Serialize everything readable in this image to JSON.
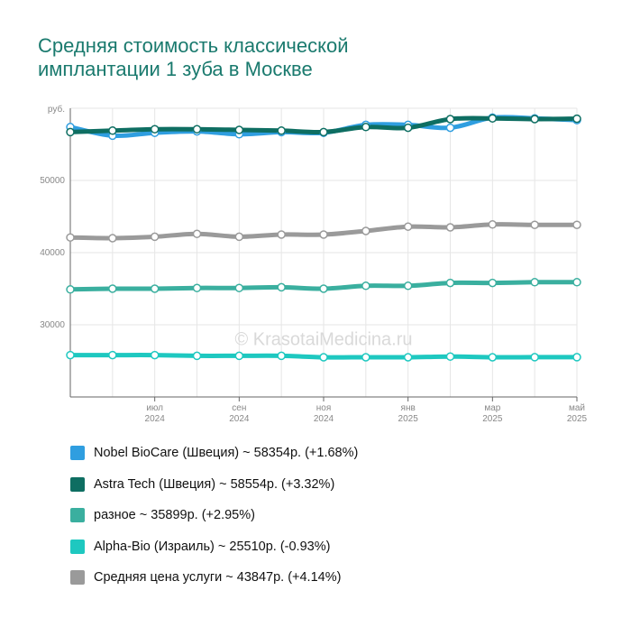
{
  "title_lines": [
    "Средняя стоимость классической",
    "имплантации 1 зуба в Москве"
  ],
  "watermark": "© KrasotaiMedicina.ru",
  "chart_data": {
    "type": "line",
    "title": "Средняя стоимость классической имплантации 1 зуба в Москве",
    "y_unit_label": "руб.",
    "ylim": [
      20000,
      60000
    ],
    "y_ticks": [
      30000,
      40000,
      50000
    ],
    "y_tick_labels": [
      "30000",
      "40000",
      "50000"
    ],
    "x": [
      "2024-05",
      "2024-06",
      "2024-07",
      "2024-08",
      "2024-09",
      "2024-10",
      "2024-11",
      "2024-12",
      "2025-01",
      "2025-02",
      "2025-03",
      "2025-04",
      "2025-05"
    ],
    "x_tick_labels": [
      {
        "month": "июл",
        "year": "2024",
        "at": "2024-07"
      },
      {
        "month": "сен",
        "year": "2024",
        "at": "2024-09"
      },
      {
        "month": "ноя",
        "year": "2024",
        "at": "2024-11"
      },
      {
        "month": "янв",
        "year": "2025",
        "at": "2025-01"
      },
      {
        "month": "мар",
        "year": "2025",
        "at": "2025-03"
      },
      {
        "month": "май",
        "year": "2025",
        "at": "2025-05"
      }
    ],
    "grid": true,
    "legend_position": "bottom",
    "series": [
      {
        "name": "Nobel BioCare (Швеция)",
        "legend": "Nobel BioCare (Швеция) ~ 58354р. (+1.68%)",
        "color": "#2f9ee0",
        "values": [
          57400,
          56200,
          56600,
          56800,
          56400,
          56700,
          56600,
          57700,
          57700,
          57300,
          58700,
          58600,
          58354
        ]
      },
      {
        "name": "Astra Tech (Швеция)",
        "legend": "Astra Tech (Швеция) ~ 58554р. (+3.32%)",
        "color": "#0e6e62",
        "values": [
          56700,
          56900,
          57100,
          57100,
          57000,
          56900,
          56700,
          57400,
          57300,
          58500,
          58600,
          58500,
          58554
        ]
      },
      {
        "name": "разное",
        "legend": "разное ~ 35899р. (+2.95%)",
        "color": "#3aaf9f",
        "values": [
          34900,
          35000,
          35000,
          35100,
          35100,
          35200,
          35000,
          35400,
          35400,
          35800,
          35800,
          35899,
          35899
        ]
      },
      {
        "name": "Alpha-Bio (Израиль)",
        "legend": "Alpha-Bio (Израиль) ~ 25510р. (-0.93%)",
        "color": "#1ec8c0",
        "values": [
          25800,
          25800,
          25800,
          25700,
          25700,
          25700,
          25500,
          25500,
          25500,
          25600,
          25500,
          25510,
          25510
        ]
      },
      {
        "name": "Средняя цена услуги",
        "legend": "Средняя цена услуги ~ 43847р. (+4.14%)",
        "color": "#9a9a9a",
        "values": [
          42100,
          42000,
          42200,
          42600,
          42200,
          42500,
          42500,
          43000,
          43600,
          43500,
          43900,
          43847,
          43847
        ]
      }
    ]
  }
}
